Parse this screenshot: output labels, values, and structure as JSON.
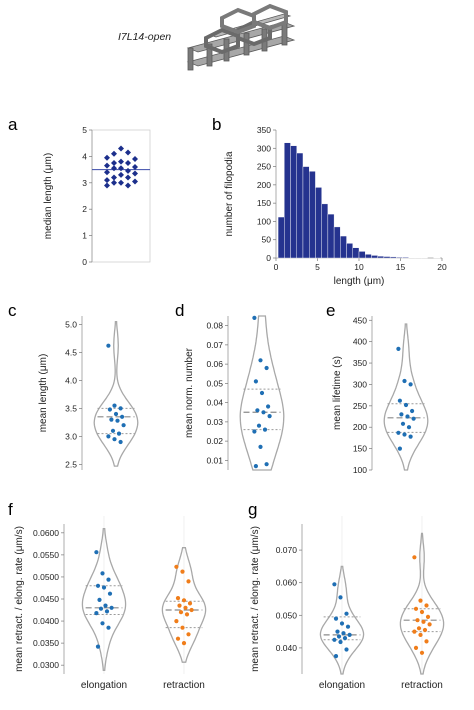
{
  "header": {
    "title": "I7L14-open"
  },
  "chart_data": [
    {
      "panel": "a",
      "type": "scatter",
      "ylabel": "median length (μm)",
      "ylim": [
        0,
        5
      ],
      "yticks": [
        0,
        1,
        2,
        3,
        4,
        5
      ],
      "median_line": 3.5,
      "values": [
        4.3,
        4.1,
        4.15,
        3.95,
        3.9,
        3.8,
        3.75,
        3.75,
        3.65,
        3.6,
        3.55,
        3.55,
        3.45,
        3.4,
        3.35,
        3.3,
        3.2,
        3.2,
        3.1,
        3.05,
        3.0,
        3.0,
        2.9,
        2.9
      ]
    },
    {
      "panel": "b",
      "type": "bar",
      "xlabel": "length (μm)",
      "ylabel": "number of filopodia",
      "xlim": [
        0,
        20
      ],
      "ylim": [
        0,
        350
      ],
      "bin_width": 0.75,
      "xticks": [
        0,
        5,
        10,
        15,
        20
      ],
      "yticks": [
        0,
        50,
        100,
        150,
        200,
        250,
        300,
        350
      ],
      "bins_start": [
        0.25,
        1.0,
        1.75,
        2.5,
        3.25,
        4.0,
        4.75,
        5.5,
        6.25,
        7.0,
        7.75,
        8.5,
        9.25,
        10.0,
        10.75,
        11.5,
        12.25,
        13.0,
        13.75,
        14.5,
        15.25,
        16.0,
        16.75,
        17.5,
        18.25,
        19.0
      ],
      "values": [
        112,
        315,
        307,
        287,
        250,
        237,
        193,
        148,
        120,
        85,
        60,
        40,
        28,
        18,
        10,
        7,
        5,
        4,
        3,
        2,
        2,
        1,
        1,
        1,
        0,
        1
      ]
    },
    {
      "panel": "c",
      "type": "violin",
      "ylabel": "mean length (μm)",
      "ylim": [
        2.4,
        5.15
      ],
      "yticks": [
        2.5,
        3,
        3.5,
        4,
        4.5,
        5
      ],
      "median": 3.35,
      "quartiles": [
        3.05,
        3.5
      ],
      "values": [
        4.62,
        3.55,
        3.5,
        3.48,
        3.4,
        3.35,
        3.3,
        3.28,
        3.2,
        3.1,
        3.05,
        3.0,
        2.95,
        2.9
      ]
    },
    {
      "panel": "d",
      "type": "violin",
      "ylabel": "mean norm. number",
      "ylim": [
        0.005,
        0.085
      ],
      "yticks": [
        0.01,
        0.02,
        0.03,
        0.04,
        0.05,
        0.06,
        0.07,
        0.08
      ],
      "median": 0.035,
      "quartiles": [
        0.026,
        0.047
      ],
      "values": [
        0.084,
        0.062,
        0.058,
        0.051,
        0.045,
        0.038,
        0.036,
        0.035,
        0.033,
        0.028,
        0.026,
        0.025,
        0.017,
        0.008,
        0.007
      ]
    },
    {
      "panel": "e",
      "type": "violin",
      "ylabel": "mean lifetime (s)",
      "ylim": [
        100,
        460
      ],
      "yticks": [
        100,
        150,
        200,
        250,
        300,
        350,
        400,
        450
      ],
      "median": 222,
      "quartiles": [
        188,
        255
      ],
      "values": [
        383,
        308,
        300,
        262,
        252,
        238,
        230,
        225,
        220,
        208,
        200,
        187,
        183,
        178,
        150
      ]
    },
    {
      "panel": "f",
      "type": "violin",
      "ylabel": "mean retract. / elong. rate (μm/s)",
      "ylim": [
        0.028,
        0.062
      ],
      "yticks": [
        0.03,
        0.035,
        0.04,
        0.045,
        0.05,
        0.055,
        0.06
      ],
      "categories": [
        "elongation",
        "retraction"
      ],
      "series": [
        {
          "name": "elongation",
          "color": "#1f6fb4",
          "median": 0.043,
          "quartiles": [
            0.0415,
            0.048
          ],
          "values": [
            0.0556,
            0.0508,
            0.0494,
            0.048,
            0.0476,
            0.0462,
            0.0448,
            0.0435,
            0.043,
            0.0428,
            0.0422,
            0.0418,
            0.0395,
            0.0385,
            0.0342
          ]
        },
        {
          "name": "retraction",
          "color": "#f07d1a",
          "median": 0.0425,
          "quartiles": [
            0.0385,
            0.0445
          ],
          "values": [
            0.0523,
            0.0512,
            0.049,
            0.0452,
            0.0447,
            0.044,
            0.0435,
            0.043,
            0.0425,
            0.042,
            0.0415,
            0.04,
            0.0385,
            0.037,
            0.036,
            0.035
          ]
        }
      ]
    },
    {
      "panel": "g",
      "type": "violin",
      "ylabel": "mean retract. / elong. rate (μm/s)",
      "ylim": [
        0.032,
        0.078
      ],
      "yticks": [
        0.04,
        0.05,
        0.06,
        0.07
      ],
      "categories": [
        "elongation",
        "retraction"
      ],
      "series": [
        {
          "name": "elongation",
          "color": "#1f6fb4",
          "median": 0.044,
          "quartiles": [
            0.0425,
            0.0495
          ],
          "values": [
            0.0595,
            0.0555,
            0.0505,
            0.049,
            0.0475,
            0.0465,
            0.045,
            0.0445,
            0.044,
            0.0435,
            0.043,
            0.0425,
            0.0418,
            0.0395,
            0.0375
          ]
        },
        {
          "name": "retraction",
          "color": "#f07d1a",
          "median": 0.0485,
          "quartiles": [
            0.045,
            0.052
          ],
          "values": [
            0.0678,
            0.0545,
            0.053,
            0.052,
            0.051,
            0.0495,
            0.0485,
            0.048,
            0.0472,
            0.046,
            0.0455,
            0.045,
            0.044,
            0.042,
            0.04,
            0.0385
          ]
        }
      ]
    }
  ]
}
